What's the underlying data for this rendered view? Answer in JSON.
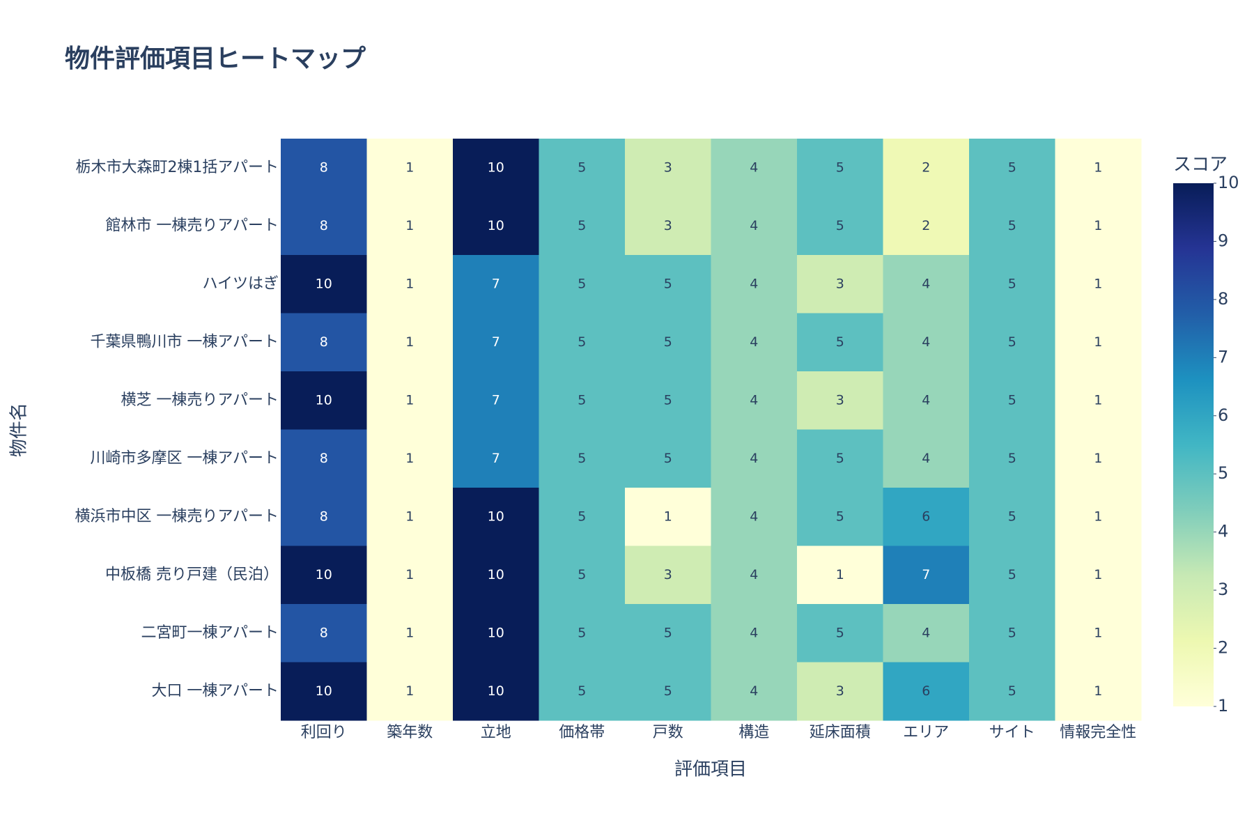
{
  "chart_data": {
    "type": "heatmap",
    "title": "物件評価項目ヒートマップ",
    "x_label": "評価項目",
    "y_label": "物件名",
    "categories": [
      "利回り",
      "築年数",
      "立地",
      "価格帯",
      "戸数",
      "構造",
      "延床面積",
      "エリア",
      "サイト",
      "情報完全性"
    ],
    "rows": [
      "栃木市大森町2棟1括アパート",
      "館林市 一棟売りアパート",
      "ハイツはぎ",
      "千葉県鴨川市 一棟アパート",
      "横芝 一棟売りアパート",
      "川崎市多摩区 一棟アパート",
      "横浜市中区 一棟売りアパート",
      "中板橋 売り戸建（民泊）",
      "二宮町一棟アパート",
      "大口 一棟アパート"
    ],
    "values": [
      [
        8,
        1,
        10,
        5,
        3,
        4,
        5,
        2,
        5,
        1
      ],
      [
        8,
        1,
        10,
        5,
        3,
        4,
        5,
        2,
        5,
        1
      ],
      [
        10,
        1,
        7,
        5,
        5,
        4,
        3,
        4,
        5,
        1
      ],
      [
        8,
        1,
        7,
        5,
        5,
        4,
        5,
        4,
        5,
        1
      ],
      [
        10,
        1,
        7,
        5,
        5,
        4,
        3,
        4,
        5,
        1
      ],
      [
        8,
        1,
        7,
        5,
        5,
        4,
        5,
        4,
        5,
        1
      ],
      [
        8,
        1,
        10,
        5,
        1,
        4,
        5,
        6,
        5,
        1
      ],
      [
        10,
        1,
        10,
        5,
        3,
        4,
        1,
        7,
        5,
        1
      ],
      [
        8,
        1,
        10,
        5,
        5,
        4,
        5,
        4,
        5,
        1
      ],
      [
        10,
        1,
        10,
        5,
        5,
        4,
        3,
        6,
        5,
        1
      ]
    ],
    "colorbar_title": "スコア",
    "zlim": [
      1,
      10
    ],
    "zticks": [
      1,
      2,
      3,
      4,
      5,
      6,
      7,
      8,
      9,
      10
    ],
    "colorscale": [
      "#ffffd9",
      "#edf8b1",
      "#c7e9b4",
      "#7fcdbb",
      "#41b6c4",
      "#1d91c0",
      "#225ea8",
      "#253494",
      "#081d58"
    ]
  }
}
